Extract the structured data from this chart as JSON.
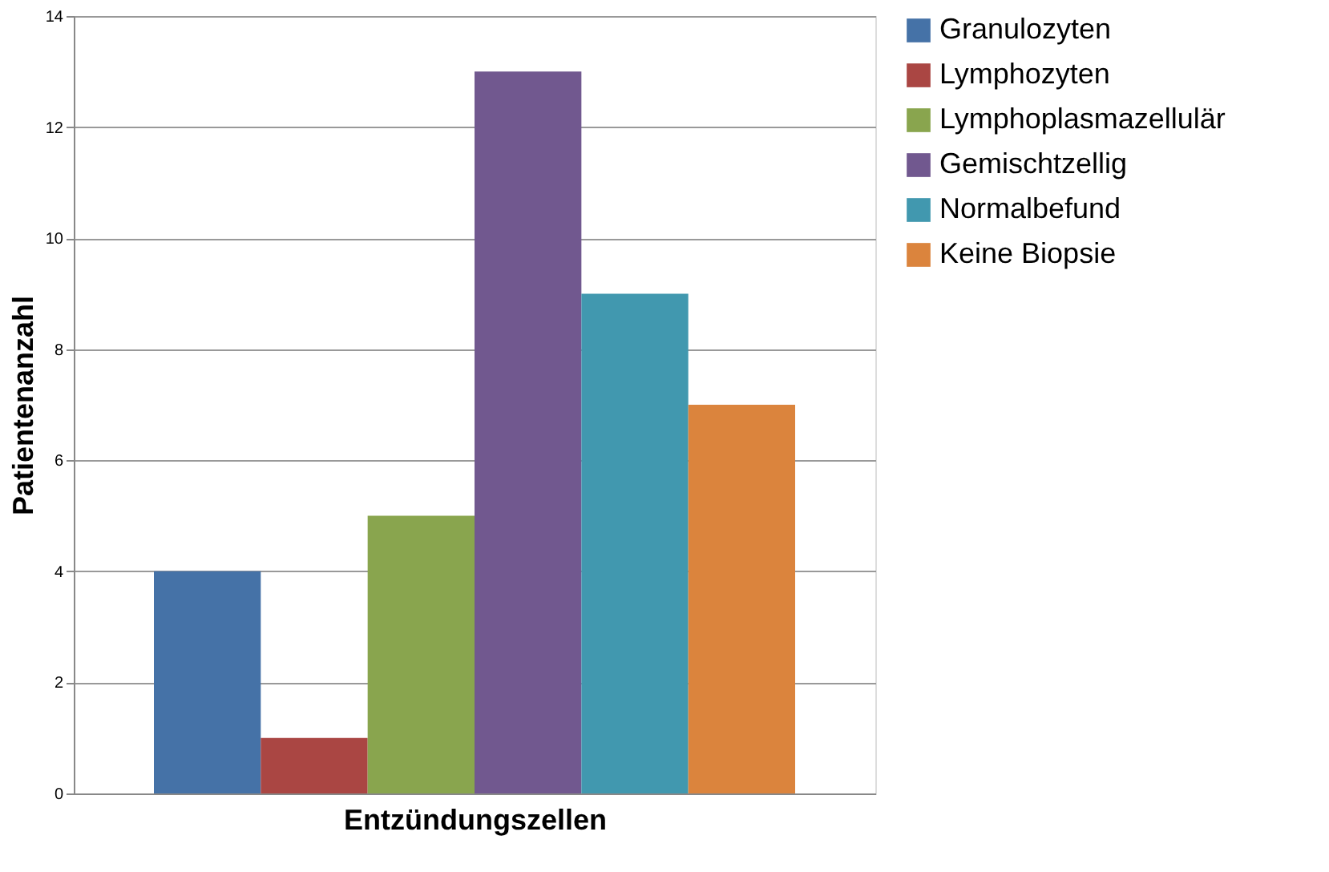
{
  "chart_data": {
    "type": "bar",
    "xlabel": "Entzündungszellen",
    "ylabel": "Patientenanzahl",
    "categories": [
      null
    ],
    "series": [
      {
        "name": "Granulozyten",
        "color": "#4572a7",
        "values": [
          4
        ]
      },
      {
        "name": "Lymphozyten",
        "color": "#aa4643",
        "values": [
          1
        ]
      },
      {
        "name": "Lymphoplasmazellulär",
        "color": "#89a54e",
        "values": [
          5
        ]
      },
      {
        "name": "Gemischtzellig",
        "color": "#71588f",
        "values": [
          13
        ]
      },
      {
        "name": "Normalbefund",
        "color": "#4198af",
        "values": [
          9
        ]
      },
      {
        "name": "Keine Biopsie",
        "color": "#db843d",
        "values": [
          7
        ]
      }
    ],
    "ylim": [
      0,
      14
    ],
    "yticks": [
      0,
      2,
      4,
      6,
      8,
      10,
      12,
      14
    ],
    "grid": "y",
    "legend": "right"
  }
}
